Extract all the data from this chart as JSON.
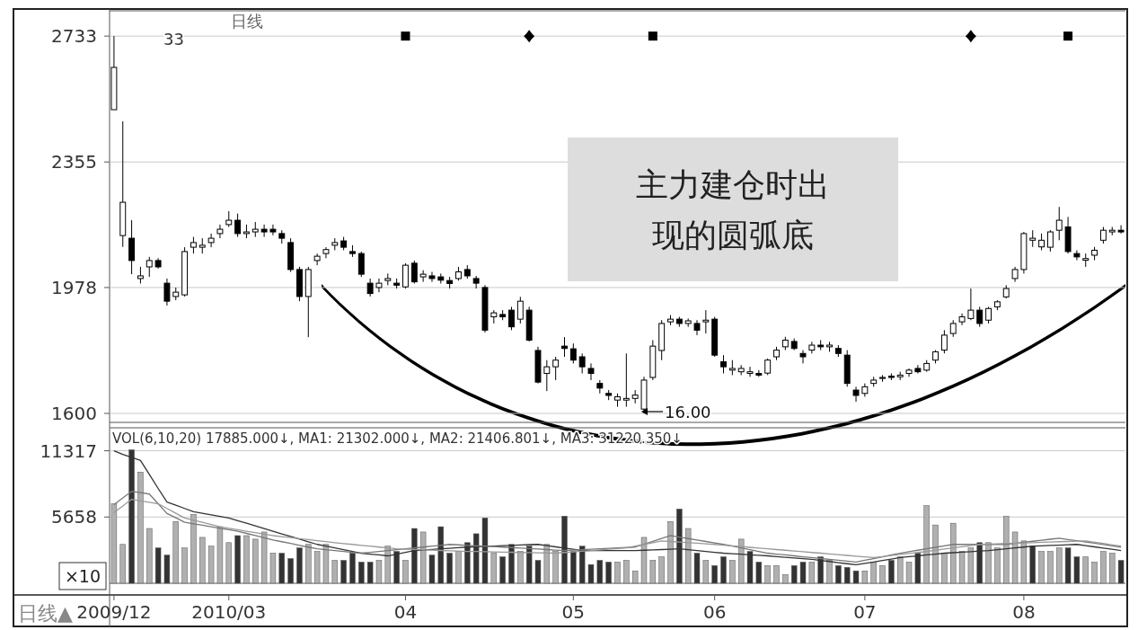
{
  "chart_data": [
    {
      "type": "candlestick",
      "title": "日线",
      "color": "#000000",
      "grid": "y",
      "tick_labels": "y",
      "ylim": [
        1573,
        2809
      ],
      "yticks": [
        1600,
        1978,
        2355,
        2733
      ],
      "categories": [
        "2009/12",
        null,
        null,
        null,
        null,
        null,
        null,
        null,
        null,
        null,
        null,
        null,
        null,
        "2010/03",
        null,
        null,
        null,
        null,
        null,
        null,
        null,
        null,
        null,
        null,
        null,
        null,
        null,
        null,
        null,
        null,
        null,
        null,
        null,
        "04",
        null,
        null,
        null,
        null,
        null,
        null,
        null,
        null,
        null,
        null,
        null,
        null,
        null,
        null,
        null,
        null,
        null,
        null,
        "05",
        null,
        null,
        null,
        null,
        null,
        null,
        null,
        null,
        null,
        null,
        null,
        null,
        null,
        null,
        null,
        "06",
        null,
        null,
        null,
        null,
        null,
        null,
        null,
        null,
        null,
        null,
        null,
        null,
        null,
        null,
        null,
        null,
        "07",
        null,
        null,
        null,
        null,
        null,
        null,
        null,
        null,
        null,
        null,
        null,
        null,
        null,
        null,
        null,
        null,
        null,
        "08",
        null,
        null,
        null,
        null,
        null,
        null,
        null,
        null,
        null,
        null,
        null
      ],
      "ohlc": [
        [
          2512,
          2733,
          2512,
          2639
        ],
        [
          2134,
          2477,
          2100,
          2234
        ],
        [
          2126,
          2180,
          2018,
          2059
        ],
        [
          2005,
          2040,
          1990,
          2013
        ],
        [
          2040,
          2070,
          2010,
          2059
        ],
        [
          2059,
          2066,
          2035,
          2040
        ],
        [
          1991,
          2005,
          1924,
          1937
        ],
        [
          1951,
          1978,
          1940,
          1964
        ],
        [
          1956,
          2099,
          1951,
          2086
        ],
        [
          2099,
          2130,
          2080,
          2113
        ],
        [
          2099,
          2126,
          2080,
          2105
        ],
        [
          2113,
          2140,
          2099,
          2126
        ],
        [
          2140,
          2167,
          2126,
          2153
        ],
        [
          2167,
          2207,
          2160,
          2180
        ],
        [
          2180,
          2200,
          2130,
          2140
        ],
        [
          2140,
          2167,
          2126,
          2145
        ],
        [
          2145,
          2175,
          2130,
          2153
        ],
        [
          2153,
          2167,
          2130,
          2145
        ],
        [
          2153,
          2167,
          2135,
          2145
        ],
        [
          2140,
          2150,
          2110,
          2126
        ],
        [
          2113,
          2126,
          2025,
          2032
        ],
        [
          2032,
          2040,
          1937,
          1951
        ],
        [
          1951,
          2040,
          1829,
          2032
        ],
        [
          2059,
          2080,
          2045,
          2072
        ],
        [
          2080,
          2099,
          2066,
          2092
        ],
        [
          2105,
          2126,
          2090,
          2113
        ],
        [
          2118,
          2130,
          2090,
          2099
        ],
        [
          2086,
          2105,
          2070,
          2080
        ],
        [
          2080,
          2086,
          2010,
          2018
        ],
        [
          1991,
          2005,
          1951,
          1960
        ],
        [
          1978,
          2005,
          1964,
          1991
        ],
        [
          1999,
          2020,
          1985,
          2005
        ],
        [
          1991,
          2005,
          1975,
          1985
        ],
        [
          1980,
          2051,
          1975,
          2045
        ],
        [
          2051,
          2059,
          1990,
          1995
        ],
        [
          2010,
          2030,
          1995,
          2018
        ],
        [
          2013,
          2025,
          1995,
          2005
        ],
        [
          2010,
          2020,
          1990,
          2000
        ],
        [
          1999,
          2010,
          1975,
          1990
        ],
        [
          2005,
          2040,
          1999,
          2025
        ],
        [
          2032,
          2045,
          2005,
          2013
        ],
        [
          2005,
          2013,
          1975,
          1991
        ],
        [
          1978,
          1985,
          1843,
          1850
        ],
        [
          1890,
          1910,
          1870,
          1902
        ],
        [
          1897,
          1910,
          1880,
          1890
        ],
        [
          1910,
          1920,
          1850,
          1860
        ],
        [
          1883,
          1950,
          1870,
          1937
        ],
        [
          1910,
          1920,
          1816,
          1820
        ],
        [
          1789,
          1800,
          1690,
          1694
        ],
        [
          1720,
          1760,
          1667,
          1740
        ],
        [
          1740,
          1770,
          1700,
          1760
        ],
        [
          1802,
          1829,
          1770,
          1795
        ],
        [
          1794,
          1810,
          1750,
          1760
        ],
        [
          1770,
          1780,
          1720,
          1740
        ],
        [
          1735,
          1750,
          1700,
          1720
        ],
        [
          1690,
          1700,
          1660,
          1676
        ],
        [
          1660,
          1670,
          1640,
          1654
        ],
        [
          1640,
          1660,
          1620,
          1650
        ],
        [
          1640,
          1780,
          1620,
          1645
        ],
        [
          1645,
          1670,
          1630,
          1655
        ],
        [
          1613,
          1710,
          1600,
          1700
        ],
        [
          1708,
          1820,
          1700,
          1802
        ],
        [
          1789,
          1880,
          1760,
          1870
        ],
        [
          1875,
          1895,
          1865,
          1883
        ],
        [
          1883,
          1890,
          1860,
          1870
        ],
        [
          1870,
          1885,
          1860,
          1878
        ],
        [
          1870,
          1880,
          1835,
          1850
        ],
        [
          1875,
          1910,
          1840,
          1880
        ],
        [
          1883,
          1890,
          1770,
          1775
        ],
        [
          1755,
          1775,
          1720,
          1740
        ],
        [
          1730,
          1760,
          1715,
          1735
        ],
        [
          1725,
          1745,
          1715,
          1735
        ],
        [
          1720,
          1740,
          1710,
          1725
        ],
        [
          1720,
          1730,
          1710,
          1715
        ],
        [
          1721,
          1765,
          1715,
          1760
        ],
        [
          1770,
          1800,
          1760,
          1790
        ],
        [
          1800,
          1830,
          1790,
          1820
        ],
        [
          1816,
          1825,
          1790,
          1795
        ],
        [
          1780,
          1790,
          1750,
          1770
        ],
        [
          1790,
          1815,
          1780,
          1805
        ],
        [
          1805,
          1820,
          1790,
          1800
        ],
        [
          1800,
          1815,
          1785,
          1805
        ],
        [
          1795,
          1805,
          1770,
          1780
        ],
        [
          1775,
          1790,
          1680,
          1690
        ],
        [
          1670,
          1680,
          1635,
          1654
        ],
        [
          1660,
          1690,
          1650,
          1680
        ],
        [
          1690,
          1710,
          1680,
          1700
        ],
        [
          1705,
          1715,
          1695,
          1708
        ],
        [
          1712,
          1720,
          1700,
          1708
        ],
        [
          1710,
          1725,
          1700,
          1715
        ],
        [
          1720,
          1735,
          1710,
          1730
        ],
        [
          1735,
          1745,
          1720,
          1725
        ],
        [
          1730,
          1760,
          1725,
          1750
        ],
        [
          1760,
          1790,
          1750,
          1785
        ],
        [
          1790,
          1850,
          1780,
          1835
        ],
        [
          1840,
          1880,
          1830,
          1870
        ],
        [
          1875,
          1900,
          1865,
          1890
        ],
        [
          1885,
          1975,
          1880,
          1910
        ],
        [
          1910,
          1920,
          1860,
          1870
        ],
        [
          1880,
          1920,
          1870,
          1915
        ],
        [
          1920,
          1940,
          1910,
          1935
        ],
        [
          1950,
          1985,
          1945,
          1975
        ],
        [
          2005,
          2040,
          1995,
          2032
        ],
        [
          2032,
          2145,
          2020,
          2140
        ],
        [
          2120,
          2150,
          2100,
          2126
        ],
        [
          2100,
          2140,
          2090,
          2120
        ],
        [
          2099,
          2150,
          2086,
          2145
        ],
        [
          2150,
          2220,
          2120,
          2180
        ],
        [
          2160,
          2190,
          2080,
          2086
        ],
        [
          2080,
          2090,
          2060,
          2070
        ],
        [
          2060,
          2080,
          2040,
          2065
        ],
        [
          2075,
          2100,
          2060,
          2090
        ],
        [
          2120,
          2160,
          2110,
          2150
        ],
        [
          2145,
          2160,
          2135,
          2150
        ],
        [
          2150,
          2165,
          2140,
          2145
        ]
      ],
      "series": [
        {
          "type": "scatter",
          "marker": "square",
          "color": "#000000",
          "values": [
            null,
            null,
            null,
            null,
            null,
            null,
            null,
            null,
            null,
            null,
            null,
            null,
            null,
            null,
            null,
            null,
            null,
            null,
            null,
            null,
            null,
            null,
            null,
            null,
            null,
            null,
            null,
            null,
            null,
            null,
            null,
            null,
            null,
            2733,
            null,
            null,
            null,
            null,
            null,
            null,
            null,
            null,
            null,
            null,
            null,
            null,
            null,
            null,
            null,
            null,
            null,
            null,
            null,
            null,
            null,
            null,
            null,
            null,
            null,
            null,
            null,
            2733,
            null,
            null,
            null,
            null,
            null,
            null,
            null,
            null,
            null,
            null,
            null,
            null,
            null,
            null,
            null,
            null,
            null,
            null,
            null,
            null,
            null,
            null,
            null,
            null,
            null,
            null,
            null,
            null,
            null,
            null,
            null,
            null,
            null,
            null,
            null,
            null,
            null,
            null,
            null,
            null,
            null,
            null,
            null,
            null,
            null,
            null,
            2733,
            null,
            null,
            null,
            null,
            null,
            null
          ]
        },
        {
          "type": "scatter",
          "marker": "diamond",
          "color": "#000000",
          "values": [
            null,
            null,
            null,
            null,
            null,
            null,
            null,
            null,
            null,
            null,
            null,
            null,
            null,
            null,
            null,
            null,
            null,
            null,
            null,
            null,
            null,
            null,
            null,
            null,
            null,
            null,
            null,
            null,
            null,
            null,
            null,
            null,
            null,
            null,
            null,
            null,
            null,
            null,
            null,
            null,
            null,
            null,
            null,
            null,
            null,
            null,
            null,
            2733,
            null,
            null,
            null,
            null,
            null,
            null,
            null,
            null,
            null,
            null,
            null,
            null,
            null,
            null,
            null,
            null,
            null,
            null,
            null,
            null,
            null,
            null,
            null,
            null,
            null,
            null,
            null,
            null,
            null,
            null,
            null,
            null,
            null,
            null,
            null,
            null,
            null,
            null,
            null,
            null,
            null,
            null,
            null,
            null,
            null,
            null,
            null,
            null,
            null,
            2733,
            null,
            null,
            null,
            null,
            null,
            null,
            null,
            null,
            null,
            null,
            null,
            null,
            null,
            null,
            null,
            null,
            null
          ]
        }
      ],
      "annotations": [
        "33",
        "主力建仓时出现的圆弧底",
        "16.00"
      ]
    },
    {
      "type": "bar",
      "grid": "y",
      "ylim": [
        0,
        13280
      ],
      "yticks": [
        5658,
        11317
      ],
      "categories": [
        "2009/12",
        null,
        null,
        null,
        null,
        null,
        null,
        null,
        null,
        null,
        null,
        null,
        null,
        "2010/03",
        null,
        null,
        null,
        null,
        null,
        null,
        null,
        null,
        null,
        null,
        null,
        null,
        null,
        null,
        null,
        null,
        null,
        null,
        null,
        "04",
        null,
        null,
        null,
        null,
        null,
        null,
        null,
        null,
        null,
        null,
        null,
        null,
        null,
        null,
        null,
        null,
        null,
        null,
        "05",
        null,
        null,
        null,
        null,
        null,
        null,
        null,
        null,
        null,
        null,
        null,
        null,
        null,
        null,
        null,
        "06",
        null,
        null,
        null,
        null,
        null,
        null,
        null,
        null,
        null,
        null,
        null,
        null,
        null,
        null,
        null,
        null,
        "07",
        null,
        null,
        null,
        null,
        null,
        null,
        null,
        null,
        null,
        null,
        null,
        null,
        null,
        null,
        null,
        null,
        null,
        "08",
        null,
        null,
        null,
        null,
        null,
        null,
        null,
        null,
        null,
        null,
        null
      ],
      "values": [
        6790,
        3320,
        11400,
        9500,
        4680,
        3020,
        2410,
        5280,
        3020,
        5880,
        3920,
        3170,
        4830,
        3470,
        4070,
        4070,
        3770,
        4380,
        2570,
        2570,
        2110,
        3020,
        3320,
        2720,
        3320,
        1960,
        1960,
        2570,
        1810,
        1810,
        1960,
        3170,
        2720,
        1960,
        4680,
        4380,
        2410,
        4830,
        2570,
        2720,
        3470,
        4230,
        5580,
        2570,
        2260,
        3320,
        2720,
        3170,
        1960,
        3320,
        2720,
        5730,
        2720,
        3170,
        1600,
        1960,
        1810,
        1810,
        1960,
        1060,
        3920,
        1960,
        2260,
        5280,
        6340,
        4680,
        2570,
        1960,
        1510,
        2260,
        1960,
        3770,
        2720,
        1810,
        1510,
        1510,
        750,
        1510,
        1810,
        1810,
        2260,
        1960,
        1510,
        1360,
        1060,
        1060,
        1810,
        1510,
        1960,
        2260,
        1810,
        2570,
        6640,
        4980,
        2570,
        5130,
        2720,
        3020,
        3470,
        3470,
        3020,
        5730,
        4380,
        3620,
        3170,
        2720,
        2720,
        3020,
        3020,
        2260,
        2260,
        1810,
        2720,
        2570,
        1960
      ],
      "colors": [
        "#b0b0b0",
        "#b0b0b0",
        "#333333",
        "#b0b0b0",
        "#b0b0b0",
        "#333333",
        "#333333",
        "#b0b0b0",
        "#b0b0b0",
        "#b0b0b0",
        "#b0b0b0",
        "#b0b0b0",
        "#b0b0b0",
        "#b0b0b0",
        "#333333",
        "#b0b0b0",
        "#b0b0b0",
        "#b0b0b0",
        "#b0b0b0",
        "#333333",
        "#333333",
        "#333333",
        "#b0b0b0",
        "#b0b0b0",
        "#b0b0b0",
        "#b0b0b0",
        "#333333",
        "#333333",
        "#333333",
        "#333333",
        "#b0b0b0",
        "#b0b0b0",
        "#333333",
        "#b0b0b0",
        "#333333",
        "#b0b0b0",
        "#333333",
        "#333333",
        "#333333",
        "#b0b0b0",
        "#333333",
        "#333333",
        "#333333",
        "#b0b0b0",
        "#333333",
        "#333333",
        "#b0b0b0",
        "#333333",
        "#333333",
        "#b0b0b0",
        "#b0b0b0",
        "#333333",
        "#333333",
        "#333333",
        "#333333",
        "#333333",
        "#333333",
        "#b0b0b0",
        "#b0b0b0",
        "#b0b0b0",
        "#b0b0b0",
        "#b0b0b0",
        "#b0b0b0",
        "#b0b0b0",
        "#333333",
        "#b0b0b0",
        "#333333",
        "#b0b0b0",
        "#333333",
        "#333333",
        "#b0b0b0",
        "#b0b0b0",
        "#333333",
        "#333333",
        "#b0b0b0",
        "#b0b0b0",
        "#b0b0b0",
        "#333333",
        "#333333",
        "#b0b0b0",
        "#333333",
        "#b0b0b0",
        "#333333",
        "#333333",
        "#333333",
        "#b0b0b0",
        "#b0b0b0",
        "#b0b0b0",
        "#333333",
        "#b0b0b0",
        "#b0b0b0",
        "#333333",
        "#b0b0b0",
        "#b0b0b0",
        "#b0b0b0",
        "#b0b0b0",
        "#b0b0b0",
        "#b0b0b0",
        "#333333",
        "#b0b0b0",
        "#b0b0b0",
        "#b0b0b0",
        "#b0b0b0",
        "#b0b0b0",
        "#333333",
        "#b0b0b0",
        "#b0b0b0",
        "#b0b0b0",
        "#333333",
        "#333333",
        "#b0b0b0",
        "#b0b0b0",
        "#b0b0b0",
        "#b0b0b0",
        "#333333"
      ],
      "series": [
        {
          "type": "line",
          "color": "#333333",
          "values": [
            11320,
            11000,
            10750,
            10490,
            9300,
            8100,
            6940,
            6670,
            6390,
            6110,
            5980,
            5850,
            5710,
            5580,
            5350,
            5130,
            4900,
            4680,
            4450,
            4220,
            4000,
            3770,
            3550,
            3320,
            3170,
            3020,
            2870,
            2720,
            2570,
            2490,
            2420,
            2340,
            2490,
            2640,
            2790,
            2840,
            2890,
            2940,
            2990,
            3040,
            3090,
            3120,
            3150,
            3180,
            3210,
            3240,
            3270,
            3300,
            3320,
            3210,
            3110,
            3000,
            2900,
            2790,
            2790,
            2790,
            2790,
            2790,
            2790,
            2790,
            2820,
            2850,
            2880,
            2910,
            2940,
            2870,
            2790,
            2720,
            2640,
            2570,
            2520,
            2480,
            2430,
            2390,
            2340,
            2280,
            2220,
            2160,
            2100,
            2040,
            1950,
            1860,
            1760,
            1670,
            1580,
            1700,
            1820,
            1950,
            2070,
            2190,
            2270,
            2340,
            2420,
            2490,
            2570,
            2610,
            2660,
            2700,
            2750,
            2790,
            2870,
            2940,
            3020,
            3090,
            3170,
            3200,
            3230,
            3260,
            3290,
            3320,
            3210,
            3110,
            3000,
            2900,
            2790
          ]
        },
        {
          "type": "line",
          "color": "#777777",
          "values": [
            6720,
            7290,
            7850,
            7740,
            7620,
            6790,
            5960,
            5590,
            5210,
            5080,
            4960,
            4830,
            4700,
            4580,
            4450,
            4260,
            4070,
            3890,
            3700,
            3550,
            3400,
            3240,
            3090,
            2940,
            2870,
            2790,
            2720,
            2640,
            2570,
            2640,
            2720,
            2790,
            2870,
            2940,
            3020,
            3090,
            3170,
            3240,
            3320,
            3280,
            3240,
            3200,
            3170,
            3130,
            3090,
            3050,
            3000,
            2960,
            2920,
            2880,
            2830,
            2790,
            2830,
            2870,
            2900,
            2940,
            2980,
            3020,
            3050,
            3090,
            3330,
            3580,
            3820,
            4070,
            3950,
            3820,
            3700,
            3570,
            3450,
            3320,
            3170,
            3020,
            2870,
            2720,
            2570,
            2490,
            2420,
            2340,
            2260,
            2190,
            2110,
            2040,
            1960,
            1890,
            1810,
            1960,
            2110,
            2260,
            2420,
            2570,
            2700,
            2820,
            2950,
            3070,
            3200,
            3320,
            3320,
            3320,
            3320,
            3320,
            3320,
            3320,
            3410,
            3500,
            3590,
            3670,
            3760,
            3850,
            3740,
            3640,
            3530,
            3420,
            3310,
            3200,
            3090
          ]
        },
        {
          "type": "line",
          "color": "#999999",
          "values": [
            6040,
            6600,
            7170,
            7040,
            6920,
            6790,
            6390,
            5980,
            5580,
            5390,
            5210,
            5020,
            4830,
            4700,
            4580,
            4450,
            4320,
            4200,
            4070,
            3980,
            3900,
            3810,
            3730,
            3640,
            3560,
            3470,
            3390,
            3320,
            3240,
            3170,
            3090,
            3020,
            2940,
            2910,
            2890,
            2860,
            2830,
            2800,
            2780,
            2750,
            2720,
            2710,
            2690,
            2680,
            2660,
            2650,
            2630,
            2620,
            2600,
            2590,
            2570,
            2630,
            2680,
            2740,
            2800,
            2850,
            2910,
            2960,
            3020,
            3170,
            3320,
            3470,
            3620,
            3570,
            3520,
            3470,
            3420,
            3370,
            3320,
            3260,
            3190,
            3130,
            3070,
            3000,
            2940,
            2880,
            2820,
            2750,
            2690,
            2630,
            2570,
            2510,
            2440,
            2380,
            2320,
            2250,
            2190,
            2280,
            2370,
            2460,
            2540,
            2630,
            2720,
            2820,
            2920,
            3020,
            3120,
            3220,
            3320,
            3350,
            3370,
            3400,
            3420,
            3450,
            3470,
            3500,
            3520,
            3550,
            3570,
            3600,
            3620,
            3510,
            3400,
            3280,
            3170
          ]
        }
      ],
      "annotations": [
        "VOL(6,10,20) 17885.000↓, MA1: 21302.000↓, MA2: 21406.801↓, MA3: 31220.350↓",
        "×10",
        "日线▲"
      ]
    }
  ]
}
